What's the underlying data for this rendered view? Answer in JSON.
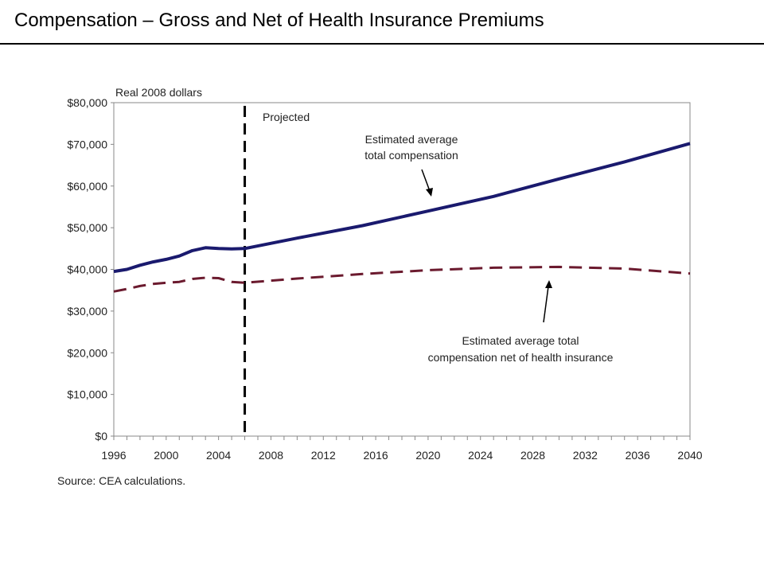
{
  "slide_title": "Compensation – Gross and Net of Health Insurance Premiums",
  "chart_data": {
    "type": "line",
    "ylabel": "Real 2008 dollars",
    "xlim": [
      1996,
      2040
    ],
    "ylim": [
      0,
      80000
    ],
    "x_ticks": [
      "1996",
      "2000",
      "2004",
      "2008",
      "2012",
      "2016",
      "2020",
      "2024",
      "2028",
      "2032",
      "2036",
      "2040"
    ],
    "y_ticks": [
      "$0",
      "$10,000",
      "$20,000",
      "$30,000",
      "$40,000",
      "$50,000",
      "$60,000",
      "$70,000",
      "$80,000"
    ],
    "projection_start": 2006,
    "projection_label": "Projected",
    "grid": false,
    "series": [
      {
        "name": "Estimated average total compensation",
        "color": "#1a1a6e",
        "style": "solid",
        "x": [
          1996,
          1997,
          1998,
          1999,
          2000,
          2001,
          2002,
          2003,
          2004,
          2005,
          2006,
          2010,
          2015,
          2020,
          2025,
          2030,
          2035,
          2040
        ],
        "y": [
          39500,
          40000,
          41000,
          41800,
          42400,
          43200,
          44500,
          45200,
          45000,
          44900,
          45000,
          47500,
          50500,
          54000,
          57500,
          61700,
          65800,
          70200
        ]
      },
      {
        "name": "Estimated average total compensation net of health insurance",
        "color": "#6b1a2e",
        "style": "dashed",
        "x": [
          1996,
          1997,
          1998,
          1999,
          2000,
          2001,
          2002,
          2003,
          2004,
          2005,
          2006,
          2010,
          2015,
          2020,
          2025,
          2030,
          2035,
          2040
        ],
        "y": [
          34700,
          35300,
          36000,
          36500,
          36800,
          37000,
          37700,
          38000,
          37900,
          37000,
          36800,
          37800,
          38900,
          39800,
          40400,
          40600,
          40200,
          39000
        ]
      }
    ],
    "annotations": [
      {
        "lines": [
          "Estimated average",
          "total compensation"
        ]
      },
      {
        "lines": [
          "Estimated average total",
          "compensation net of health insurance"
        ]
      }
    ],
    "source": "Source: CEA calculations."
  }
}
